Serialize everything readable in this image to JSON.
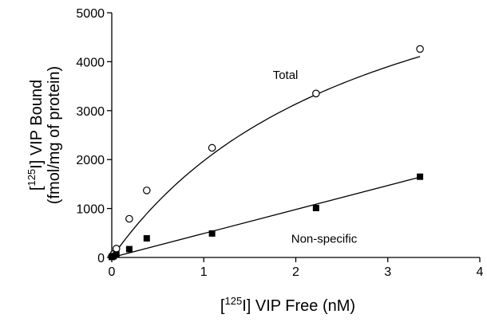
{
  "chart_data": {
    "type": "scatter",
    "xlabel": {
      "prefix": "[",
      "sup": "125",
      "rest": "I] VIP Free (nM)"
    },
    "ylabel": {
      "line1_prefix": "[",
      "line1_sup": "125",
      "line1_rest": "I] VIP Bound",
      "line2": "(fmol/mg of protein)"
    },
    "xlim": [
      0,
      4
    ],
    "ylim": [
      0,
      5000
    ],
    "xticks": [
      "0",
      "1",
      "2",
      "3",
      "4"
    ],
    "yticks": [
      "0",
      "1000",
      "2000",
      "3000",
      "4000",
      "5000"
    ],
    "grid": false,
    "series": [
      {
        "name": "Total",
        "marker": "open-circle",
        "x": [
          0.0,
          0.01,
          0.02,
          0.05,
          0.19,
          0.38,
          1.09,
          2.22,
          3.35
        ],
        "y": [
          20,
          40,
          70,
          180,
          790,
          1370,
          2240,
          3350,
          4260
        ],
        "fit": {
          "model": "saturation",
          "x_end": 3.35
        }
      },
      {
        "name": "Non-specific",
        "marker": "filled-square",
        "x": [
          0.0,
          0.01,
          0.02,
          0.05,
          0.19,
          0.38,
          1.09,
          2.22,
          3.35
        ],
        "y": [
          10,
          20,
          30,
          60,
          170,
          390,
          490,
          1010,
          1650
        ],
        "fit": {
          "model": "linear",
          "x_end": 3.35
        }
      }
    ],
    "annotations": [
      {
        "text": "Total",
        "series": "Total"
      },
      {
        "text": "Non-specific",
        "series": "Non-specific"
      }
    ],
    "colors": {
      "axis": "#000000",
      "marks": "#000000"
    }
  }
}
